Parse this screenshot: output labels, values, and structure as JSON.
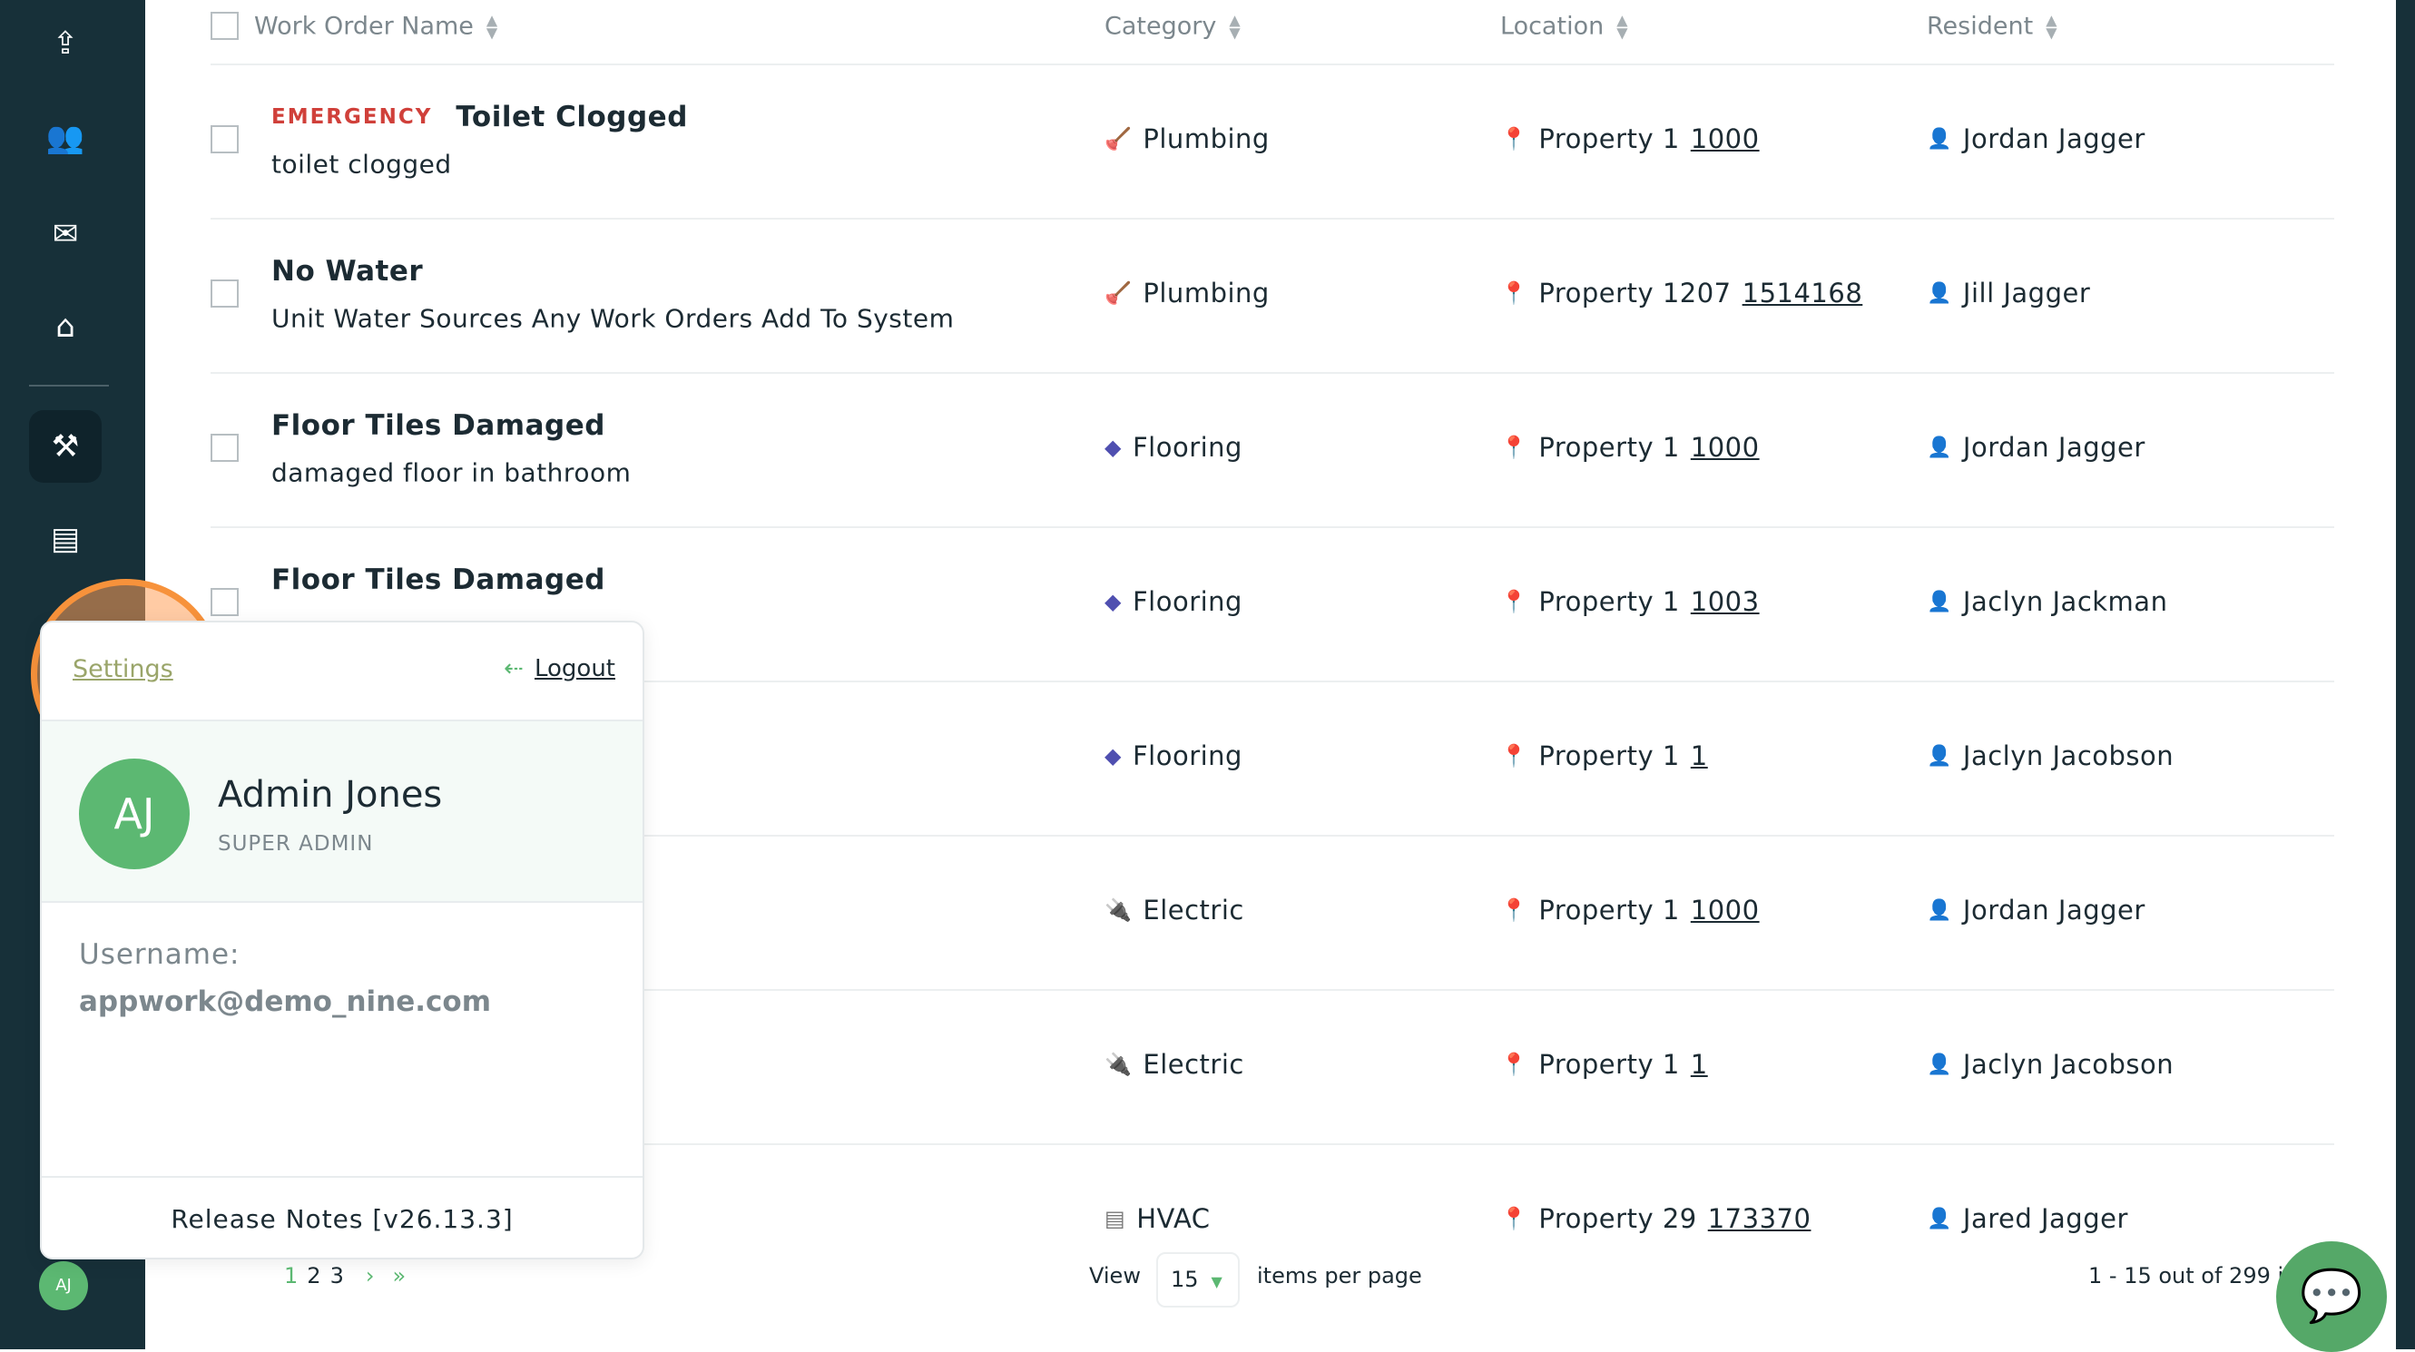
{
  "sidebar": {
    "icons": [
      "file-upload-icon",
      "users-icon",
      "envelope-open-icon",
      "home-icon",
      "drill-icon",
      "document-icon"
    ],
    "user_initials": "AJ"
  },
  "table": {
    "headers": [
      "Work Order Name",
      "Category",
      "Location",
      "Resident"
    ],
    "rows": [
      {
        "priority": "EMERGENCY",
        "title": "Toilet Clogged",
        "description": "toilet clogged",
        "category": "Plumbing",
        "cat_icon": "plunger-icon",
        "property": "Property 1",
        "unit": "1000",
        "resident": "Jordan Jagger"
      },
      {
        "title": "No Water",
        "description": "Unit Water Sources Any Work Orders Add To System",
        "category": "Plumbing",
        "cat_icon": "plunger-icon",
        "property": "Property 1207",
        "unit": "1514168",
        "resident": "Jill Jagger"
      },
      {
        "title": "Floor Tiles Damaged",
        "description": "damaged floor in bathroom",
        "category": "Flooring",
        "cat_icon": "flooring-icon",
        "property": "Property 1",
        "unit": "1000",
        "resident": "Jordan Jagger"
      },
      {
        "title": "Floor Tiles Damaged",
        "description": "",
        "category": "Flooring",
        "cat_icon": "flooring-icon",
        "property": "Property 1",
        "unit": "1003",
        "resident": "Jaclyn Jackman"
      },
      {
        "category": "Flooring",
        "cat_icon": "flooring-icon",
        "property": "Property 1",
        "unit": "1",
        "resident": "Jaclyn Jacobson"
      },
      {
        "category": "Electric",
        "cat_icon": "plug-icon",
        "property": "Property 1",
        "unit": "1000",
        "resident": "Jordan Jagger"
      },
      {
        "category": "Electric",
        "cat_icon": "plug-icon",
        "property": "Property 1",
        "unit": "1",
        "resident": "Jaclyn Jacobson"
      },
      {
        "category": "HVAC",
        "cat_icon": "hvac-icon",
        "property": "Property 29",
        "unit": "173370",
        "resident": "Jared Jagger"
      }
    ]
  },
  "popup": {
    "settings": "Settings",
    "logout": "Logout",
    "initials": "AJ",
    "name": "Admin Jones",
    "role": "SUPER ADMIN",
    "username_label": "Username:",
    "username": "appwork@demo_nine.com",
    "release_notes": "Release Notes [v26.13.3]"
  },
  "pagination": {
    "pages": [
      "1",
      "2",
      "3"
    ],
    "next": "›",
    "last": "»",
    "view": "View",
    "per_page": "15",
    "items_per_page": "items per page",
    "count": "1 - 15 out of 299 it"
  },
  "colors": {
    "sidebar": "#173039",
    "accent": "#5cb872",
    "emergency": "#d0403a"
  }
}
